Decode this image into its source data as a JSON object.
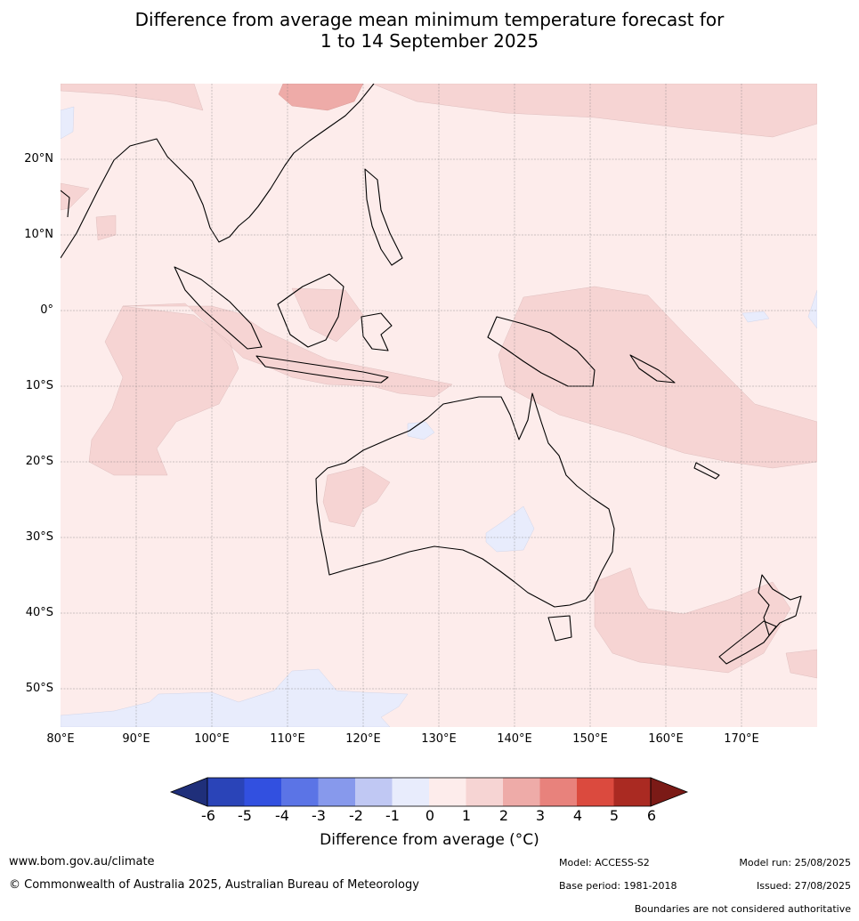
{
  "title_line1": "Difference from average mean minimum temperature forecast for",
  "title_line2": "1 to 14 September 2025",
  "lat_labels": [
    "20°N",
    "10°N",
    "0°",
    "10°S",
    "20°S",
    "30°S",
    "40°S",
    "50°S"
  ],
  "lon_labels": [
    "80°E",
    "90°E",
    "100°E",
    "110°E",
    "120°E",
    "130°E",
    "140°E",
    "150°E",
    "160°E",
    "170°E"
  ],
  "colorbar": {
    "ticks": [
      "-6",
      "-5",
      "-4",
      "-3",
      "-2",
      "-1",
      "0",
      "1",
      "2",
      "3",
      "4",
      "5",
      "6"
    ],
    "colors": [
      "#1f2f7a",
      "#2a44b8",
      "#3250e0",
      "#5b74e6",
      "#8799ec",
      "#c0c8f3",
      "#e8ecfc",
      "#fdeceb",
      "#f6d4d3",
      "#eeaba8",
      "#e8827c",
      "#db4a3e",
      "#aa2a22",
      "#7b1a16"
    ],
    "label": "Difference from average (°C)"
  },
  "footer": {
    "website": "www.bom.gov.au/climate",
    "copyright": "© Commonwealth of Australia 2025, Australian Bureau of Meteorology",
    "model": "Model: ACCESS-S2",
    "base_period": "Base period: 1981-2018",
    "model_run": "Model run: 25/08/2025",
    "issued": "Issued: 27/08/2025",
    "disclaimer": "Boundaries are not considered authoritative"
  }
}
